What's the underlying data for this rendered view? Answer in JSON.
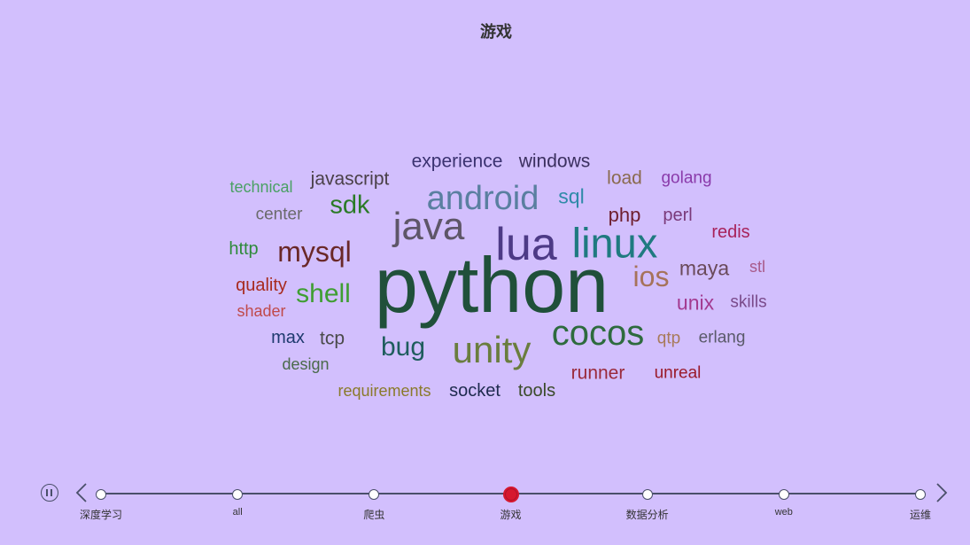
{
  "chart_data": {
    "type": "wordcloud",
    "title": "游戏",
    "words": [
      {
        "text": "python",
        "weight": 100,
        "color": "#20503a"
      },
      {
        "text": "lua",
        "weight": 48,
        "color": "#4d3a86"
      },
      {
        "text": "linux",
        "weight": 44,
        "color": "#1f7a80"
      },
      {
        "text": "java",
        "weight": 42,
        "color": "#5e5668"
      },
      {
        "text": "cocos",
        "weight": 40,
        "color": "#2e6b3e"
      },
      {
        "text": "unity",
        "weight": 40,
        "color": "#6a7d3e"
      },
      {
        "text": "android",
        "weight": 37,
        "color": "#5a7fa0"
      },
      {
        "text": "mysql",
        "weight": 30,
        "color": "#6a2828"
      },
      {
        "text": "ios",
        "weight": 30,
        "color": "#a6735a"
      },
      {
        "text": "shell",
        "weight": 28,
        "color": "#3f9e32"
      },
      {
        "text": "bug",
        "weight": 28,
        "color": "#1f5d5d"
      },
      {
        "text": "sdk",
        "weight": 27,
        "color": "#2a7a26"
      },
      {
        "text": "maya",
        "weight": 23,
        "color": "#6a4a5a"
      },
      {
        "text": "unix",
        "weight": 22,
        "color": "#a33a90"
      },
      {
        "text": "sql",
        "weight": 22,
        "color": "#2f8aa8"
      },
      {
        "text": "php",
        "weight": 21,
        "color": "#6e1e2e"
      },
      {
        "text": "experience",
        "weight": 20,
        "color": "#3a3270"
      },
      {
        "text": "windows",
        "weight": 20,
        "color": "#3a2f5e"
      },
      {
        "text": "javascript",
        "weight": 20,
        "color": "#4a4048"
      },
      {
        "text": "load",
        "weight": 20,
        "color": "#8a6a4e"
      },
      {
        "text": "tcp",
        "weight": 20,
        "color": "#4a4a4a"
      },
      {
        "text": "max",
        "weight": 19,
        "color": "#1e3a6e"
      },
      {
        "text": "runner",
        "weight": 19,
        "color": "#9a2a3a"
      },
      {
        "text": "socket",
        "weight": 19,
        "color": "#1e2a4e"
      },
      {
        "text": "tools",
        "weight": 19,
        "color": "#3a4a2a"
      },
      {
        "text": "perl",
        "weight": 19,
        "color": "#7a3a7a"
      },
      {
        "text": "redis",
        "weight": 19,
        "color": "#a8225a"
      },
      {
        "text": "golang",
        "weight": 18,
        "color": "#8a3aaa"
      },
      {
        "text": "quality",
        "weight": 19,
        "color": "#a82a1e"
      },
      {
        "text": "center",
        "weight": 18,
        "color": "#6a6a6a"
      },
      {
        "text": "http",
        "weight": 18,
        "color": "#2e8a3a"
      },
      {
        "text": "erlang",
        "weight": 18,
        "color": "#5a5a6a"
      },
      {
        "text": "qtp",
        "weight": 18,
        "color": "#a87a5a"
      },
      {
        "text": "unreal",
        "weight": 18,
        "color": "#9a1a2a"
      },
      {
        "text": "skills",
        "weight": 18,
        "color": "#7a4a8a"
      },
      {
        "text": "technical",
        "weight": 17,
        "color": "#4aa064"
      },
      {
        "text": "stl",
        "weight": 17,
        "color": "#a85a8a"
      },
      {
        "text": "shader",
        "weight": 17,
        "color": "#c04a4a"
      },
      {
        "text": "design",
        "weight": 17,
        "color": "#4a6a4a"
      },
      {
        "text": "requirements",
        "weight": 17,
        "color": "#8a7a2a"
      }
    ]
  },
  "timeline": {
    "items": [
      "深度学习",
      "all",
      "爬虫",
      "游戏",
      "数据分析",
      "web",
      "运维"
    ],
    "active_index": 3,
    "line_color": "#4a4f6a",
    "active_color": "#d6182e"
  }
}
